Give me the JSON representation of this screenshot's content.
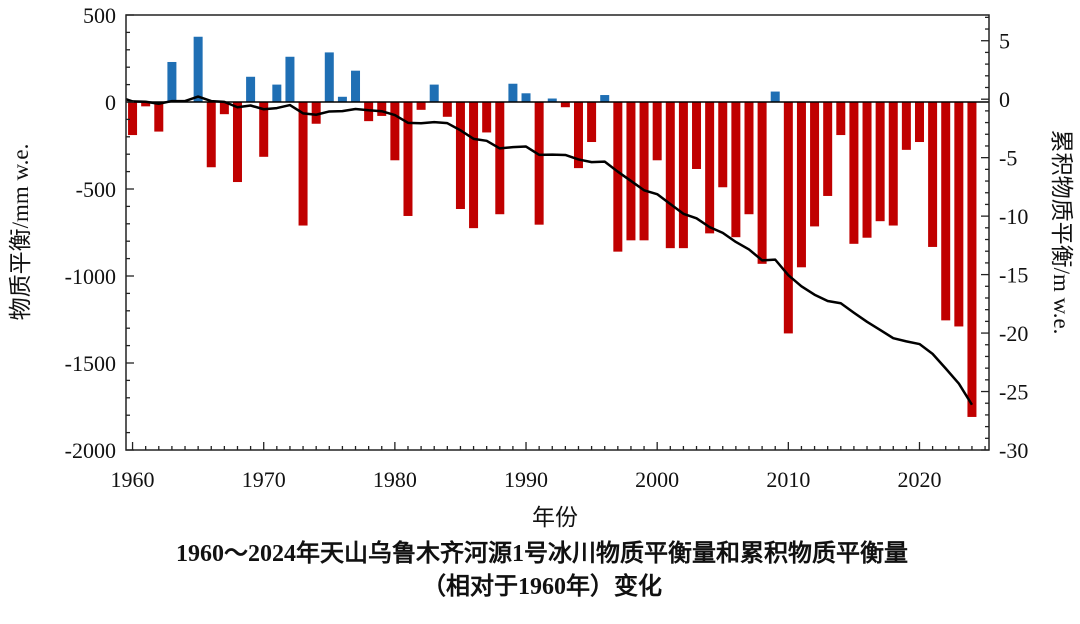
{
  "chart_data": {
    "type": "bar+line",
    "title_line1": "1960～2024年天山乌鲁木齐河源1号冰川物质平衡量和累积物质平衡量",
    "title_line2": "（相对于1960年）变化",
    "xlabel": "年份",
    "ylabel_left": "物质平衡/mm w.e.",
    "ylabel_right": "累积物质平衡/m w.e.",
    "xlim": [
      1959.5,
      2025.3
    ],
    "ylim_left": [
      -2000,
      500
    ],
    "ylim_right": [
      -30,
      7.2
    ],
    "x_ticks": [
      "1960",
      "1970",
      "1980",
      "1990",
      "2000",
      "2010",
      "2020"
    ],
    "y_ticks_left": [
      "500",
      "0",
      "-500",
      "-1000",
      "-1500",
      "-2000"
    ],
    "y_ticks_right": [
      "5",
      "0",
      "-5",
      "-10",
      "-15",
      "-20",
      "-25",
      "-30"
    ],
    "colors": {
      "positive": "#1f6fb4",
      "negative": "#c00000",
      "line": "#000000"
    },
    "years": [
      1960,
      1961,
      1962,
      1963,
      1964,
      1965,
      1966,
      1967,
      1968,
      1969,
      1970,
      1971,
      1972,
      1973,
      1974,
      1975,
      1976,
      1977,
      1978,
      1979,
      1980,
      1981,
      1982,
      1983,
      1984,
      1985,
      1986,
      1987,
      1988,
      1989,
      1990,
      1991,
      1992,
      1993,
      1994,
      1995,
      1996,
      1997,
      1998,
      1999,
      2000,
      2001,
      2002,
      2003,
      2004,
      2005,
      2006,
      2007,
      2008,
      2009,
      2010,
      2011,
      2012,
      2013,
      2014,
      2015,
      2016,
      2017,
      2018,
      2019,
      2020,
      2021,
      2022,
      2023,
      2024
    ],
    "series": [
      {
        "name": "物质平衡 (mm w.e.)",
        "axis": "left",
        "type": "bar",
        "values": [
          -190,
          -25,
          -170,
          230,
          0,
          375,
          -375,
          -70,
          -460,
          145,
          -315,
          100,
          260,
          -710,
          -125,
          285,
          30,
          180,
          -110,
          -80,
          -335,
          -655,
          -45,
          100,
          -85,
          -615,
          -725,
          -175,
          -645,
          105,
          50,
          -705,
          20,
          -30,
          -380,
          -230,
          40,
          -860,
          -795,
          -795,
          -335,
          -840,
          -840,
          -385,
          -755,
          -490,
          -777,
          -645,
          -930,
          60,
          -1330,
          -950,
          -715,
          -540,
          -190,
          -815,
          -780,
          -685,
          -710,
          -275,
          -230,
          -833,
          -1255,
          -1290,
          -1810
        ]
      },
      {
        "name": "累积物质平衡 (m w.e.)",
        "axis": "right",
        "type": "line",
        "values": [
          -0.19,
          -0.22,
          -0.39,
          -0.16,
          -0.16,
          0.22,
          -0.16,
          -0.23,
          -0.69,
          -0.54,
          -0.86,
          -0.76,
          -0.5,
          -1.21,
          -1.33,
          -1.05,
          -1.02,
          -0.84,
          -0.95,
          -1.03,
          -1.36,
          -2.02,
          -2.06,
          -1.96,
          -2.05,
          -2.66,
          -3.39,
          -3.56,
          -4.21,
          -4.1,
          -4.05,
          -4.76,
          -4.74,
          -4.77,
          -5.15,
          -5.38,
          -5.34,
          -6.2,
          -6.99,
          -7.79,
          -8.12,
          -8.96,
          -9.8,
          -10.19,
          -10.94,
          -11.43,
          -12.21,
          -12.85,
          -13.78,
          -13.72,
          -15.05,
          -16.0,
          -16.72,
          -17.26,
          -17.45,
          -18.26,
          -19.04,
          -19.73,
          -20.44,
          -20.71,
          -20.94,
          -21.78,
          -23.03,
          -24.32,
          -26.13
        ]
      }
    ]
  }
}
